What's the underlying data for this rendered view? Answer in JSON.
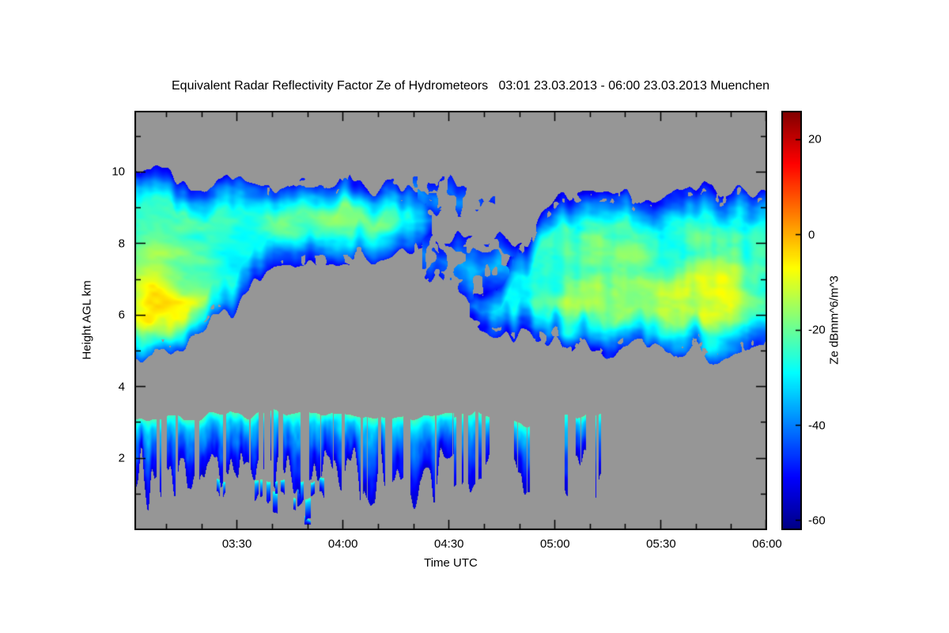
{
  "chart_data": {
    "type": "heatmap",
    "title": "Equivalent Radar Reflectivity Factor Ze of Hydrometeors   03:01 23.03.2013 - 06:00 23.03.2013 Muenchen",
    "xlabel": "Time UTC",
    "ylabel": "Height AGL km",
    "colorbar_label": "Ze dBmm^6/m^3",
    "time_start": "03:01",
    "time_end": "06:00",
    "date": "23.03.2013",
    "site": "Muenchen",
    "duration_min": 179,
    "x_minor_step_min": 10,
    "x_ticks": [
      {
        "label": "03:30",
        "f": 0.162
      },
      {
        "label": "04:00",
        "f": 0.3296
      },
      {
        "label": "04:30",
        "f": 0.4972
      },
      {
        "label": "05:00",
        "f": 0.6648
      },
      {
        "label": "05:30",
        "f": 0.8324
      },
      {
        "label": "06:00",
        "f": 1.0
      }
    ],
    "y_ticks": [
      2,
      4,
      6,
      8,
      10
    ],
    "ylim": [
      0,
      11.7
    ],
    "value_range": [
      -62,
      26
    ],
    "colorbar_ticks": [
      20,
      0,
      -20,
      -40,
      -60
    ],
    "background_gray": "#969696",
    "colormap": [
      [
        0,
        [
          0,
          0,
          131
        ]
      ],
      [
        0.125,
        [
          0,
          0,
          255
        ]
      ],
      [
        0.375,
        [
          0,
          255,
          255
        ]
      ],
      [
        0.625,
        [
          255,
          255,
          0
        ]
      ],
      [
        0.875,
        [
          255,
          0,
          0
        ]
      ],
      [
        1,
        [
          128,
          0,
          0
        ]
      ]
    ],
    "cloud_regions": [
      {
        "name": "cirrus-deck-left",
        "t": [
          0.0,
          0.47
        ],
        "seed": 11,
        "gate": 0,
        "top": [
          [
            0,
            10.2
          ],
          [
            0.05,
            10.05
          ],
          [
            0.1,
            9.7
          ],
          [
            0.16,
            9.9
          ],
          [
            0.22,
            9.6
          ],
          [
            0.28,
            9.45
          ],
          [
            0.33,
            9.75
          ],
          [
            0.4,
            9.55
          ],
          [
            0.47,
            9.0
          ]
        ],
        "bottom": [
          [
            0,
            4.7
          ],
          [
            0.08,
            4.9
          ],
          [
            0.13,
            5.8
          ],
          [
            0.18,
            6.6
          ],
          [
            0.22,
            7.4
          ],
          [
            0.3,
            7.55
          ],
          [
            0.38,
            7.6
          ],
          [
            0.44,
            7.9
          ],
          [
            0.47,
            8.5
          ]
        ],
        "base": -50,
        "fill": 22,
        "noise": 14,
        "stripes": 0
      },
      {
        "name": "cirrus-left-tail",
        "t": [
          0.44,
          0.57
        ],
        "seed": 23,
        "gate": 0.5,
        "top": [
          [
            0.44,
            9.7
          ],
          [
            0.5,
            9.7
          ],
          [
            0.57,
            9.3
          ]
        ],
        "bottom": [
          [
            0.44,
            8.8
          ],
          [
            0.5,
            9.0
          ],
          [
            0.57,
            8.9
          ]
        ],
        "base": -48,
        "fill": 14,
        "noise": 10,
        "stripes": 0
      },
      {
        "name": "mid-level-patch",
        "t": [
          0.455,
          0.665
        ],
        "seed": 37,
        "gate": 0.42,
        "top": [
          [
            0.455,
            8.1
          ],
          [
            0.52,
            8.25
          ],
          [
            0.58,
            8.0
          ],
          [
            0.62,
            7.7
          ],
          [
            0.665,
            7.4
          ]
        ],
        "bottom": [
          [
            0.455,
            7.1
          ],
          [
            0.52,
            6.5
          ],
          [
            0.58,
            6.4
          ],
          [
            0.665,
            6.5
          ]
        ],
        "base": -50,
        "fill": 16,
        "noise": 12,
        "stripes": 0
      },
      {
        "name": "cloud-deck-right",
        "t": [
          0.53,
          1.0
        ],
        "seed": 51,
        "gate": 0,
        "top": [
          [
            0.53,
            6.4
          ],
          [
            0.58,
            7.2
          ],
          [
            0.63,
            8.4
          ],
          [
            0.67,
            9.25
          ],
          [
            0.75,
            9.4
          ],
          [
            0.82,
            9.1
          ],
          [
            0.9,
            9.5
          ],
          [
            1,
            9.3
          ]
        ],
        "bottom": [
          [
            0.53,
            5.9
          ],
          [
            0.57,
            5.4
          ],
          [
            0.62,
            5.6
          ],
          [
            0.68,
            5.1
          ],
          [
            0.76,
            5.0
          ],
          [
            0.85,
            5.2
          ],
          [
            0.93,
            4.9
          ],
          [
            1,
            5.3
          ]
        ],
        "base": -50,
        "fill": 22,
        "noise": 14,
        "stripes": 8
      }
    ],
    "core_blobs": [
      {
        "t": 0.035,
        "h": 5.9,
        "rt": 0.055,
        "rh": 1.1,
        "a": 20
      },
      {
        "t": 0.02,
        "h": 7.4,
        "rt": 0.04,
        "rh": 1.3,
        "a": 10
      },
      {
        "t": 0.07,
        "h": 8.3,
        "rt": 0.06,
        "rh": 1.0,
        "a": 6
      },
      {
        "t": 0.1,
        "h": 6.2,
        "rt": 0.05,
        "rh": 0.9,
        "a": 9
      },
      {
        "t": 0.26,
        "h": 8.8,
        "rt": 0.1,
        "rh": 0.7,
        "a": 8
      },
      {
        "t": 0.36,
        "h": 8.4,
        "rt": 0.06,
        "rh": 0.8,
        "a": 7
      },
      {
        "t": 0.7,
        "h": 6.1,
        "rt": 0.05,
        "rh": 0.9,
        "a": 8
      },
      {
        "t": 0.76,
        "h": 7.7,
        "rt": 0.06,
        "rh": 1.0,
        "a": 7
      },
      {
        "t": 0.84,
        "h": 6.3,
        "rt": 0.1,
        "rh": 1.2,
        "a": 13
      },
      {
        "t": 0.93,
        "h": 6.8,
        "rt": 0.05,
        "rh": 1.5,
        "a": 12
      }
    ],
    "shallow_clusters": [
      {
        "t": [
          0.0,
          0.095
        ],
        "top": 3.15,
        "density": 0.75
      },
      {
        "t": [
          0.1,
          0.205
        ],
        "top": 3.2,
        "density": 0.7
      },
      {
        "t": [
          0.215,
          0.315
        ],
        "top": 3.25,
        "density": 0.68
      },
      {
        "t": [
          0.315,
          0.425
        ],
        "top": 3.2,
        "density": 0.72
      },
      {
        "t": [
          0.435,
          0.505
        ],
        "top": 3.15,
        "density": 0.5
      },
      {
        "t": [
          0.505,
          0.565
        ],
        "top": 3.2,
        "density": 0.45
      },
      {
        "t": [
          0.6,
          0.625
        ],
        "top": 3.0,
        "density": 0.3
      },
      {
        "t": [
          0.68,
          0.74
        ],
        "top": 3.15,
        "density": 0.45
      },
      {
        "t": [
          0.13,
          0.3
        ],
        "top": 1.4,
        "density": 0.22
      },
      {
        "t": [
          0.2,
          0.29
        ],
        "top": 0.95,
        "density": 0.18
      },
      {
        "t": [
          0.268,
          0.278
        ],
        "top": 0.4,
        "density": 0.5
      }
    ]
  }
}
